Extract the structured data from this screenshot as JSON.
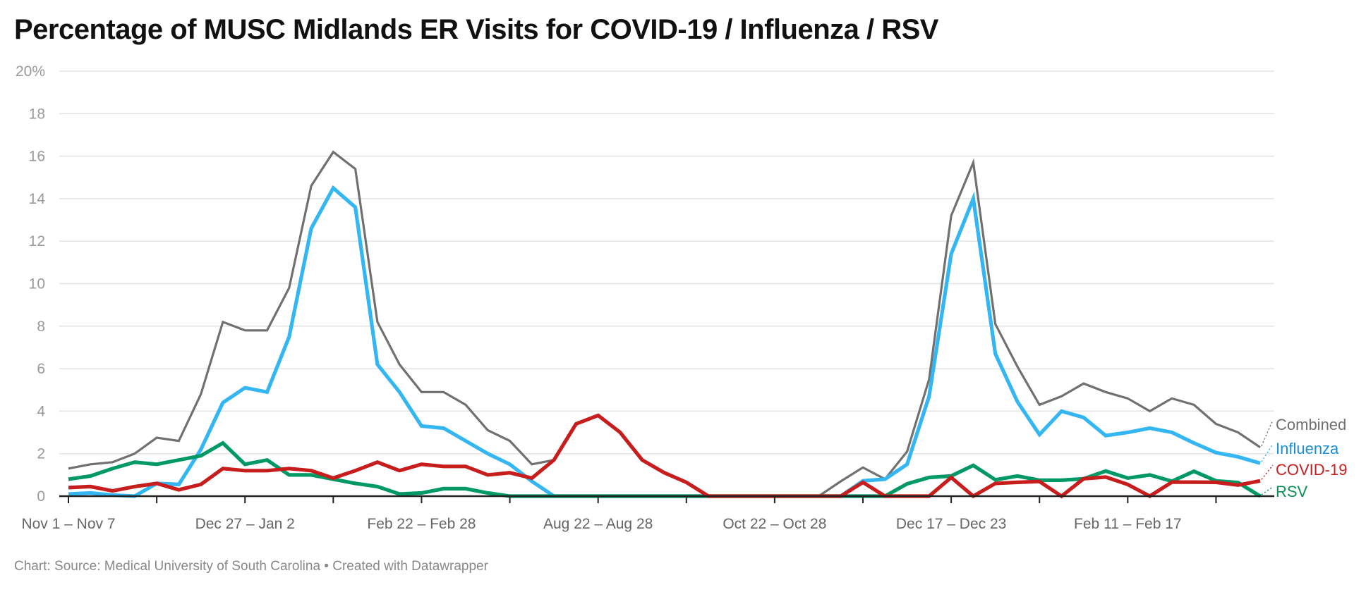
{
  "chart_data": {
    "type": "line",
    "title": "Percentage of MUSC Midlands ER Visits for COVID-19 / Influenza / RSV",
    "xlabel": "",
    "ylabel": "",
    "ylim": [
      0,
      20
    ],
    "y_ticks": [
      0,
      2,
      4,
      6,
      8,
      10,
      12,
      14,
      16,
      18,
      20
    ],
    "y_tick_labels": [
      "0",
      "2",
      "4",
      "6",
      "8",
      "10",
      "12",
      "14",
      "16",
      "18",
      "20%"
    ],
    "grid": true,
    "legend": "right, inline labels at line ends",
    "categories": [
      "Nov 1 – Nov 7",
      "",
      "",
      "",
      "",
      "",
      "",
      "",
      "Dec 27 – Jan 2",
      "",
      "",
      "",
      "",
      "",
      "",
      "",
      "Feb 22 – Feb 28",
      "",
      "",
      "",
      "",
      "",
      "",
      "",
      "Aug 22 – Aug 28",
      "",
      "",
      "",
      "",
      "",
      "",
      "",
      "Oct 22 – Oct 28",
      "",
      "",
      "",
      "",
      "",
      "",
      "",
      "Dec 17 – Dec 23",
      "",
      "",
      "",
      "",
      "",
      "",
      "",
      "Feb 11 – Feb 17",
      "",
      "",
      "",
      "",
      "",
      ""
    ],
    "series": [
      {
        "name": "Combined",
        "color": "#707070",
        "values": [
          1.3,
          1.5,
          1.6,
          2.0,
          2.75,
          2.6,
          4.8,
          8.2,
          7.8,
          7.8,
          9.8,
          14.6,
          16.2,
          15.4,
          8.2,
          6.2,
          4.9,
          4.9,
          4.3,
          3.1,
          2.6,
          1.5,
          1.7,
          3.4,
          3.8,
          3.0,
          1.7,
          1.1,
          0.65,
          0,
          0,
          0,
          0,
          0,
          0,
          0.7,
          1.35,
          0.8,
          2.1,
          5.5,
          13.2,
          15.7,
          8.1,
          6.1,
          4.3,
          4.7,
          5.3,
          4.9,
          4.6,
          4.0,
          4.6,
          4.3,
          3.4,
          3.0,
          2.3
        ]
      },
      {
        "name": "Influenza",
        "color": "#33b6f2",
        "label_color": "#1a8fd6",
        "values": [
          0.1,
          0.15,
          0.05,
          0,
          0.6,
          0.55,
          2.2,
          4.4,
          5.1,
          4.9,
          7.5,
          12.6,
          14.5,
          13.6,
          6.2,
          4.9,
          3.3,
          3.2,
          2.6,
          2.0,
          1.5,
          0.7,
          0,
          0,
          0,
          0,
          0,
          0,
          0,
          0,
          0,
          0,
          0,
          0,
          0,
          0,
          0.72,
          0.8,
          1.5,
          4.7,
          11.4,
          14.0,
          6.7,
          4.45,
          2.9,
          4.0,
          3.7,
          2.85,
          3.0,
          3.2,
          3.0,
          2.5,
          2.05,
          1.85,
          1.55
        ]
      },
      {
        "name": "COVID-19",
        "color": "#c71e1d",
        "values": [
          0.4,
          0.45,
          0.25,
          0.45,
          0.6,
          0.3,
          0.55,
          1.3,
          1.2,
          1.2,
          1.3,
          1.2,
          0.85,
          1.2,
          1.6,
          1.2,
          1.5,
          1.4,
          1.4,
          1.0,
          1.1,
          0.85,
          1.7,
          3.4,
          3.8,
          3.0,
          1.7,
          1.1,
          0.65,
          0,
          0,
          0,
          0,
          0,
          0,
          0,
          0.65,
          0,
          0,
          0,
          0.88,
          0,
          0.6,
          0.65,
          0.69,
          0,
          0.82,
          0.9,
          0.55,
          0,
          0.66,
          0.66,
          0.65,
          0.52,
          0.72
        ]
      },
      {
        "name": "RSV",
        "color": "#009966",
        "label_color": "#0a8f58",
        "values": [
          0.8,
          0.95,
          1.3,
          1.6,
          1.5,
          1.7,
          1.9,
          2.5,
          1.5,
          1.7,
          1.0,
          1.0,
          0.8,
          0.6,
          0.45,
          0.1,
          0.15,
          0.35,
          0.35,
          0.15,
          0,
          0,
          0,
          0,
          0,
          0,
          0,
          0,
          0,
          0,
          0,
          0,
          0,
          0,
          0,
          0,
          0,
          0,
          0.58,
          0.88,
          0.95,
          1.45,
          0.77,
          0.95,
          0.75,
          0.75,
          0.82,
          1.18,
          0.85,
          1.0,
          0.7,
          1.17,
          0.72,
          0.64,
          0
        ]
      }
    ]
  },
  "footer": "Chart: Source: Medical University of South Carolina • Created with Datawrapper"
}
